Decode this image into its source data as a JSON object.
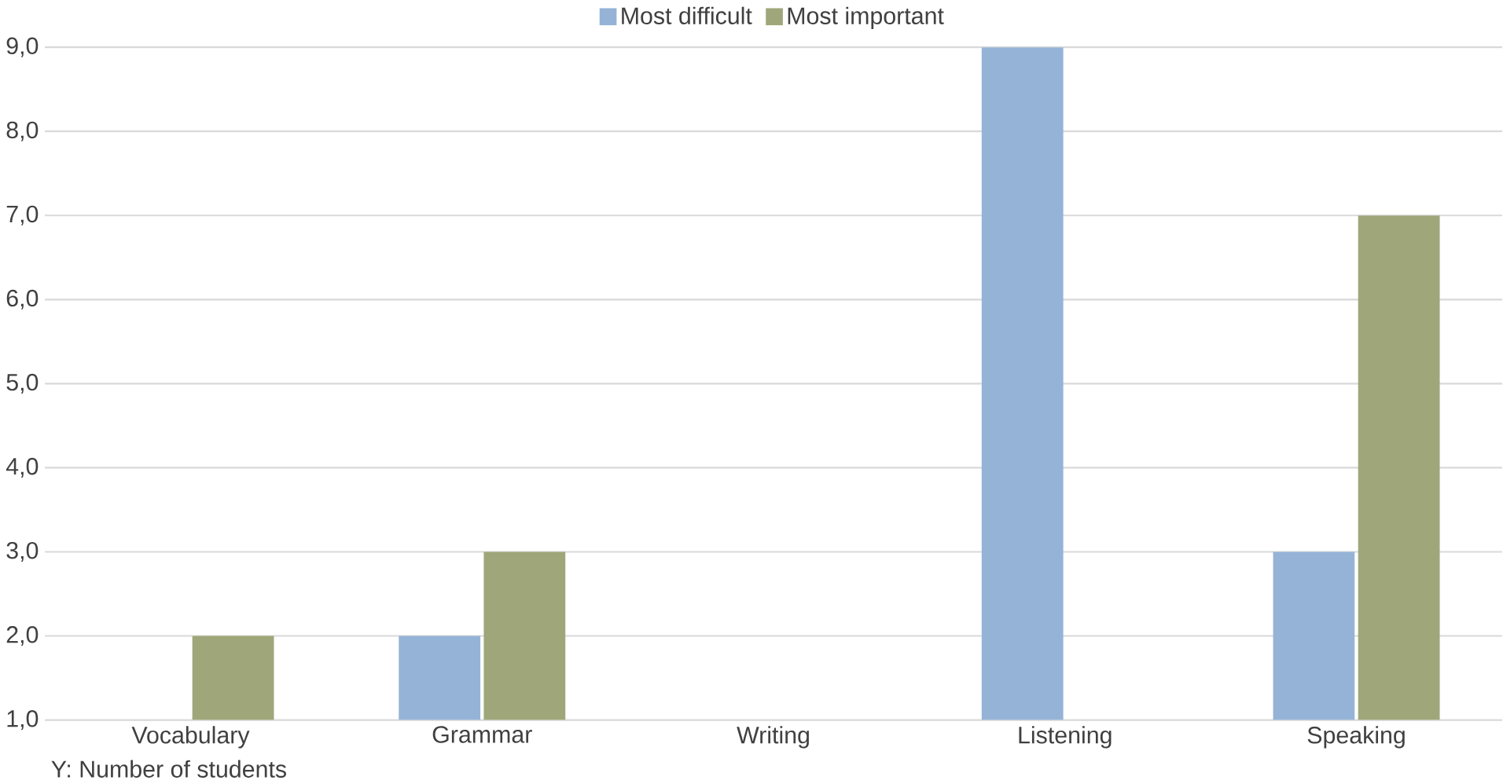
{
  "chart_data": {
    "type": "bar",
    "categories": [
      "Vocabulary",
      "Grammar",
      "Writing",
      "Listening",
      "Speaking"
    ],
    "series": [
      {
        "name": "Most difficult",
        "color": "#95b3d7",
        "values": [
          1,
          2,
          1,
          9,
          3
        ]
      },
      {
        "name": "Most important",
        "color": "#9fa77a",
        "values": [
          2,
          3,
          1,
          1,
          7
        ]
      }
    ],
    "ylim": [
      1,
      9
    ],
    "yticks": [
      {
        "value": 1,
        "label": "1,0"
      },
      {
        "value": 2,
        "label": "2,0"
      },
      {
        "value": 3,
        "label": "3,0"
      },
      {
        "value": 4,
        "label": "4,0"
      },
      {
        "value": 5,
        "label": "5,0"
      },
      {
        "value": 6,
        "label": "6,0"
      },
      {
        "value": 7,
        "label": "7,0"
      },
      {
        "value": 8,
        "label": "8,0"
      },
      {
        "value": 9,
        "label": "9,0"
      }
    ],
    "grid": "y",
    "legend": "top",
    "annotations": [
      "Y: Number of students"
    ]
  }
}
